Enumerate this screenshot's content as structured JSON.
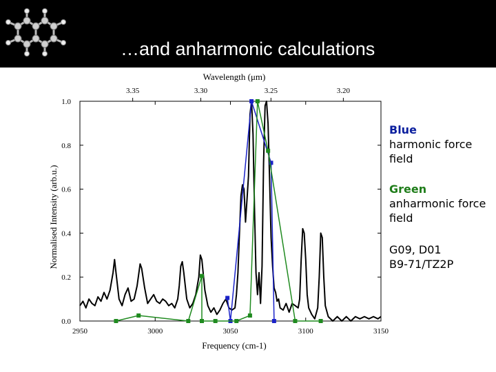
{
  "slide": {
    "title": "…and anharmonic calculations"
  },
  "notes": {
    "blue_heading": "Blue",
    "blue_text": "harmonic force field",
    "green_heading": "Green",
    "green_text": "anharmonic force field",
    "method_line1": "G09, D01",
    "method_line2": "B9-71/TZ2P"
  },
  "colors": {
    "experiment": "#000000",
    "harmonic": "#1a22c8",
    "anharmonic": "#1f8a1f"
  },
  "chart_data": {
    "type": "line",
    "xlabel": "Frequency (cm-1)",
    "ylabel": "Normalised Intensity (arb.u.)",
    "top_axis_label": "Wavelength (μm)",
    "xlim": [
      2950,
      3150
    ],
    "ylim": [
      0.0,
      1.0
    ],
    "x_ticks": [
      "2950",
      "3000",
      "3050",
      "3100",
      "3150"
    ],
    "y_ticks": [
      "0.0",
      "0.2",
      "0.4",
      "0.6",
      "0.8",
      "1.0"
    ],
    "top_ticks": [
      "3.35",
      "3.30",
      "3.25",
      "3.20"
    ],
    "top_tick_values_um": [
      3.35,
      3.3,
      3.25,
      3.2
    ],
    "series": [
      {
        "name": "Blue",
        "kind": "stick",
        "color": "#1a22c8",
        "points": [
          [
            3048,
            0.105
          ],
          [
            3050,
            0.0
          ],
          [
            3064,
            1.0
          ],
          [
            3077,
            0.72
          ],
          [
            3079,
            0.0
          ]
        ]
      },
      {
        "name": "Green",
        "kind": "stick",
        "color": "#1f8a1f",
        "points": [
          [
            2974,
            0.0
          ],
          [
            2989,
            0.025
          ],
          [
            3022,
            0.0
          ],
          [
            3031,
            0.205
          ],
          [
            3031,
            0.0
          ],
          [
            3040,
            0.0
          ],
          [
            3054,
            0.0
          ],
          [
            3063,
            0.025
          ],
          [
            3068,
            1.0
          ],
          [
            3075,
            0.775
          ],
          [
            3093,
            0.0
          ],
          [
            3110,
            0.0
          ]
        ]
      },
      {
        "kind": "spectrum",
        "color": "#000000",
        "points": [
          [
            2950,
            0.07
          ],
          [
            2952,
            0.09
          ],
          [
            2954,
            0.06
          ],
          [
            2956,
            0.1
          ],
          [
            2958,
            0.08
          ],
          [
            2960,
            0.07
          ],
          [
            2962,
            0.11
          ],
          [
            2964,
            0.09
          ],
          [
            2966,
            0.13
          ],
          [
            2968,
            0.1
          ],
          [
            2970,
            0.14
          ],
          [
            2972,
            0.22
          ],
          [
            2973,
            0.28
          ],
          [
            2974,
            0.22
          ],
          [
            2976,
            0.1
          ],
          [
            2978,
            0.07
          ],
          [
            2980,
            0.12
          ],
          [
            2982,
            0.15
          ],
          [
            2984,
            0.09
          ],
          [
            2986,
            0.1
          ],
          [
            2988,
            0.16
          ],
          [
            2990,
            0.26
          ],
          [
            2991,
            0.24
          ],
          [
            2993,
            0.15
          ],
          [
            2995,
            0.08
          ],
          [
            2997,
            0.1
          ],
          [
            2999,
            0.12
          ],
          [
            3001,
            0.09
          ],
          [
            3003,
            0.08
          ],
          [
            3005,
            0.1
          ],
          [
            3007,
            0.09
          ],
          [
            3009,
            0.07
          ],
          [
            3011,
            0.08
          ],
          [
            3013,
            0.06
          ],
          [
            3015,
            0.1
          ],
          [
            3016,
            0.16
          ],
          [
            3017,
            0.25
          ],
          [
            3018,
            0.27
          ],
          [
            3019,
            0.22
          ],
          [
            3021,
            0.1
          ],
          [
            3023,
            0.06
          ],
          [
            3025,
            0.08
          ],
          [
            3027,
            0.12
          ],
          [
            3029,
            0.2
          ],
          [
            3030,
            0.3
          ],
          [
            3031,
            0.28
          ],
          [
            3033,
            0.14
          ],
          [
            3035,
            0.07
          ],
          [
            3037,
            0.04
          ],
          [
            3039,
            0.06
          ],
          [
            3041,
            0.03
          ],
          [
            3043,
            0.05
          ],
          [
            3045,
            0.08
          ],
          [
            3047,
            0.1
          ],
          [
            3049,
            0.06
          ],
          [
            3051,
            0.05
          ],
          [
            3053,
            0.06
          ],
          [
            3054,
            0.12
          ],
          [
            3055,
            0.22
          ],
          [
            3056,
            0.4
          ],
          [
            3057,
            0.57
          ],
          [
            3058,
            0.62
          ],
          [
            3059,
            0.6
          ],
          [
            3060,
            0.45
          ],
          [
            3061,
            0.55
          ],
          [
            3062,
            0.66
          ],
          [
            3063,
            0.94
          ],
          [
            3064,
            1.0
          ],
          [
            3065,
            0.85
          ],
          [
            3066,
            0.5
          ],
          [
            3067,
            0.22
          ],
          [
            3068,
            0.12
          ],
          [
            3069,
            0.22
          ],
          [
            3070,
            0.08
          ],
          [
            3071,
            0.25
          ],
          [
            3072,
            0.72
          ],
          [
            3073,
            0.98
          ],
          [
            3074,
            1.0
          ],
          [
            3075,
            0.9
          ],
          [
            3076,
            0.65
          ],
          [
            3077,
            0.38
          ],
          [
            3078,
            0.25
          ],
          [
            3079,
            0.15
          ],
          [
            3080,
            0.13
          ],
          [
            3081,
            0.09
          ],
          [
            3082,
            0.1
          ],
          [
            3083,
            0.06
          ],
          [
            3085,
            0.05
          ],
          [
            3087,
            0.08
          ],
          [
            3089,
            0.04
          ],
          [
            3091,
            0.08
          ],
          [
            3093,
            0.07
          ],
          [
            3095,
            0.06
          ],
          [
            3096,
            0.1
          ],
          [
            3097,
            0.28
          ],
          [
            3098,
            0.42
          ],
          [
            3099,
            0.4
          ],
          [
            3100,
            0.28
          ],
          [
            3101,
            0.12
          ],
          [
            3102,
            0.06
          ],
          [
            3104,
            0.03
          ],
          [
            3106,
            0.01
          ],
          [
            3108,
            0.06
          ],
          [
            3109,
            0.2
          ],
          [
            3110,
            0.4
          ],
          [
            3111,
            0.38
          ],
          [
            3112,
            0.2
          ],
          [
            3113,
            0.07
          ],
          [
            3115,
            0.02
          ],
          [
            3118,
            0.0
          ],
          [
            3121,
            0.02
          ],
          [
            3124,
            0.0
          ],
          [
            3127,
            0.02
          ],
          [
            3130,
            0.0
          ],
          [
            3133,
            0.02
          ],
          [
            3136,
            0.01
          ],
          [
            3139,
            0.02
          ],
          [
            3142,
            0.01
          ],
          [
            3145,
            0.02
          ],
          [
            3148,
            0.01
          ],
          [
            3150,
            0.02
          ]
        ]
      }
    ]
  }
}
